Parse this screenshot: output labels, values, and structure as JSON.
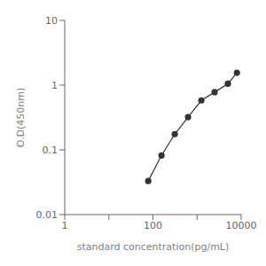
{
  "chart_data": {
    "type": "line",
    "x": [
      78.125,
      156.25,
      312.5,
      625,
      1250,
      2500,
      5000,
      8000
    ],
    "values": [
      0.033,
      0.082,
      0.175,
      0.32,
      0.58,
      0.78,
      1.05,
      1.55
    ],
    "xlabel": "standard concentration(pg/mL)",
    "ylabel": "O.D(450nm)",
    "xlim": [
      1,
      10000
    ],
    "ylim": [
      0.01,
      10
    ],
    "xticks": [
      1,
      {
        "value": 10,
        "label": null
      },
      100,
      {
        "value": 1000,
        "label": null
      },
      10000
    ],
    "yticks": [
      0.01,
      0.1,
      1,
      10
    ],
    "log": true,
    "grid": false,
    "color": "#333333",
    "marker": "circle"
  }
}
